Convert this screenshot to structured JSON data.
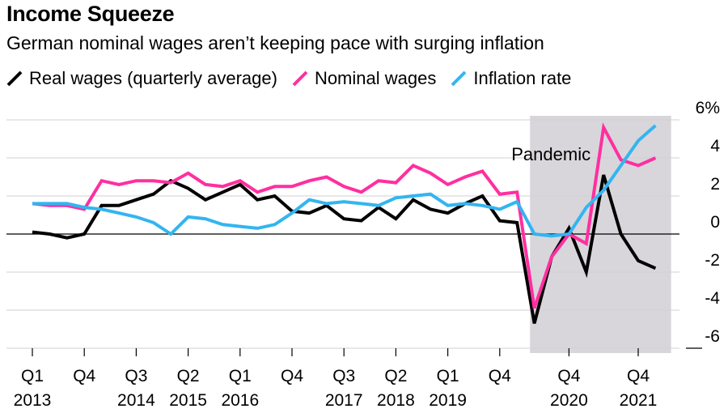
{
  "header": {
    "title": "Income Squeeze",
    "subtitle": "German nominal wages aren’t keeping pace with surging inflation"
  },
  "chart_data": {
    "type": "line",
    "title": "Income Squeeze",
    "subtitle": "German nominal wages aren’t keeping pace with surging inflation",
    "x_start": "2013 Q1",
    "frequency": "quarterly",
    "x_tick_labels": [
      {
        "q": 0,
        "line1": "Q1",
        "line2": "2013"
      },
      {
        "q": 3,
        "line1": "Q4",
        "line2": ""
      },
      {
        "q": 6,
        "line1": "Q3",
        "line2": "2014"
      },
      {
        "q": 9,
        "line1": "Q2",
        "line2": "2015"
      },
      {
        "q": 12,
        "line1": "Q1",
        "line2": "2016"
      },
      {
        "q": 15,
        "line1": "Q4",
        "line2": ""
      },
      {
        "q": 18,
        "line1": "Q3",
        "line2": "2017"
      },
      {
        "q": 21,
        "line1": "Q2",
        "line2": "2018"
      },
      {
        "q": 24,
        "line1": "Q1",
        "line2": "2019"
      },
      {
        "q": 27,
        "line1": "Q4",
        "line2": ""
      },
      {
        "q": 31,
        "line1": "Q4",
        "line2": "2020"
      },
      {
        "q": 35,
        "line1": "Q4",
        "line2": "2021"
      }
    ],
    "y_ticks": [
      {
        "value": 6,
        "label": "6%"
      },
      {
        "value": 4,
        "label": "4"
      },
      {
        "value": 2,
        "label": "2"
      },
      {
        "value": 0,
        "label": "0"
      },
      {
        "value": -2,
        "label": "-2"
      },
      {
        "value": -4,
        "label": "-4"
      },
      {
        "value": -6,
        "label": "-6"
      }
    ],
    "ylim": [
      -6,
      6
    ],
    "grid": true,
    "legend_position": "top",
    "annotations": [
      {
        "label": "Pandemic",
        "x_from": 28.75,
        "x_to": 36.9
      }
    ],
    "series": [
      {
        "name": "Real wages (quarterly average)",
        "color": "#000000",
        "values": [
          0.1,
          0.0,
          -0.2,
          0.0,
          1.5,
          1.5,
          1.8,
          2.1,
          2.8,
          2.4,
          1.8,
          2.2,
          2.6,
          1.8,
          2.0,
          1.2,
          1.1,
          1.5,
          0.8,
          0.7,
          1.4,
          0.8,
          1.8,
          1.3,
          1.1,
          1.6,
          2.0,
          0.7,
          0.6,
          -4.7,
          -1.2,
          0.3,
          -2.0,
          3.1,
          0.0,
          -1.4,
          -1.8
        ]
      },
      {
        "name": "Nominal wages",
        "color": "#ff2fa0",
        "values": [
          1.6,
          1.5,
          1.5,
          1.3,
          2.8,
          2.6,
          2.8,
          2.8,
          2.7,
          3.2,
          2.6,
          2.5,
          2.8,
          2.2,
          2.5,
          2.5,
          2.8,
          3.0,
          2.5,
          2.2,
          2.8,
          2.7,
          3.6,
          3.2,
          2.6,
          3.0,
          3.3,
          2.1,
          2.2,
          -3.9,
          -1.2,
          0.0,
          -0.5,
          5.6,
          3.9,
          3.6,
          4.0
        ]
      },
      {
        "name": "Inflation rate",
        "color": "#33b5f0",
        "values": [
          1.6,
          1.6,
          1.6,
          1.4,
          1.3,
          1.1,
          0.9,
          0.6,
          0.0,
          0.9,
          0.8,
          0.5,
          0.4,
          0.3,
          0.5,
          1.1,
          1.8,
          1.6,
          1.7,
          1.6,
          1.5,
          1.9,
          2.0,
          2.1,
          1.5,
          1.6,
          1.5,
          1.3,
          1.7,
          0.0,
          -0.1,
          0.0,
          1.4,
          2.3,
          3.6,
          4.9,
          5.7
        ]
      }
    ]
  }
}
